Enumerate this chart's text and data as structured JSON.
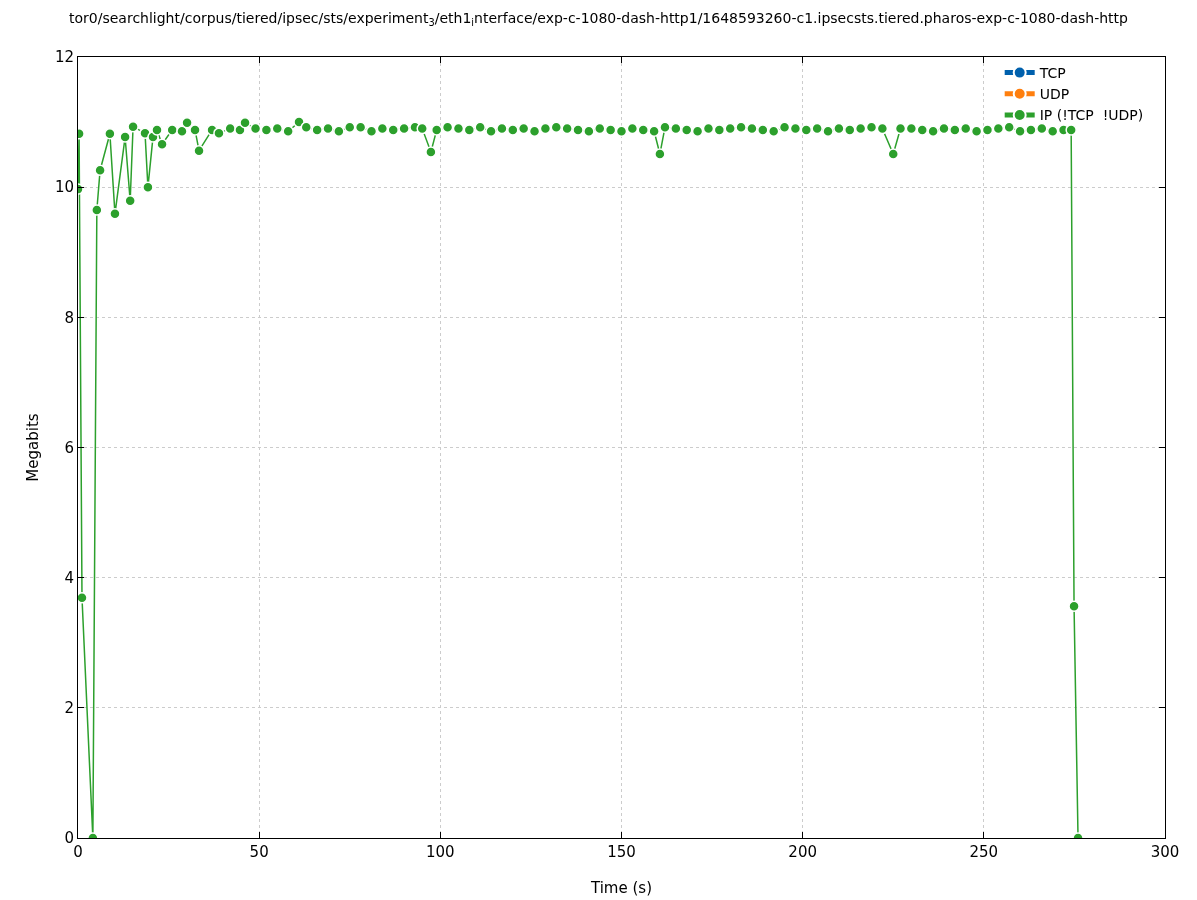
{
  "chart_data": {
    "type": "line",
    "title": "tor0/searchlight/corpus/tiered/ipsec/sts/experiment$_{3}$/eth1$_{i}$nterface/exp-c-1080-dash-http1/1648593260-c1.ipsecsts.tiered.pharos-exp-c-1080-dash-http",
    "xlabel": "Time (s)",
    "ylabel": "Megabits",
    "xlim": [
      0,
      300
    ],
    "xticks": [
      0,
      50,
      100,
      150,
      200,
      250,
      300
    ],
    "ylim": [
      0,
      12
    ],
    "yticks": [
      0,
      2,
      4,
      6,
      8,
      10,
      12
    ],
    "grid": true,
    "legend": "top right",
    "marker": "circle",
    "line_style": "solid",
    "series": [
      {
        "name": "TCP",
        "color": "#0060ad"
      },
      {
        "name": "UDP",
        "color": "#ff7f0e"
      },
      {
        "name": "IP (!TCP  !UDP)",
        "color": "#2ca02c",
        "x": [
          0,
          0.3,
          1.1,
          4.1,
          5.2,
          6.1,
          8.8,
          10.2,
          13,
          14.4,
          15.2,
          18.5,
          19.3,
          20.7,
          21.8,
          23.2,
          26,
          28.7,
          30.1,
          32.3,
          33.4,
          37,
          38.9,
          42,
          44.7,
          46.1,
          49,
          52,
          55,
          58,
          61,
          63,
          66,
          69,
          72,
          75,
          78,
          81,
          84,
          87,
          90,
          93,
          95,
          97.4,
          99,
          102,
          105,
          108,
          111,
          114,
          117,
          120,
          123,
          126,
          129,
          132,
          135,
          138,
          141,
          144,
          147,
          150,
          153,
          156,
          159,
          160.6,
          162,
          165,
          168,
          171,
          174,
          177,
          180,
          183,
          186,
          189,
          192,
          195,
          198,
          201,
          204,
          207,
          210,
          213,
          216,
          219,
          222,
          225,
          227,
          230,
          233,
          236,
          239,
          242,
          245,
          248,
          251,
          254,
          257,
          260,
          263,
          266,
          269,
          272,
          274.1,
          274.9,
          276
        ],
        "values": [
          9.97,
          10.82,
          3.69,
          0,
          9.65,
          10.26,
          10.82,
          9.59,
          10.77,
          9.79,
          10.93,
          10.83,
          10,
          10.77,
          10.88,
          10.66,
          10.88,
          10.86,
          10.99,
          10.88,
          10.56,
          10.88,
          10.83,
          10.9,
          10.88,
          10.99,
          10.9,
          10.88,
          10.9,
          10.86,
          11,
          10.92,
          10.88,
          10.9,
          10.86,
          10.92,
          10.92,
          10.86,
          10.9,
          10.88,
          10.9,
          10.92,
          10.9,
          10.54,
          10.88,
          10.92,
          10.9,
          10.88,
          10.92,
          10.86,
          10.9,
          10.88,
          10.9,
          10.86,
          10.9,
          10.92,
          10.9,
          10.88,
          10.86,
          10.9,
          10.88,
          10.86,
          10.9,
          10.88,
          10.86,
          10.51,
          10.92,
          10.9,
          10.88,
          10.86,
          10.9,
          10.88,
          10.9,
          10.92,
          10.9,
          10.88,
          10.86,
          10.92,
          10.9,
          10.88,
          10.9,
          10.86,
          10.9,
          10.88,
          10.9,
          10.92,
          10.9,
          10.51,
          10.9,
          10.9,
          10.88,
          10.86,
          10.9,
          10.88,
          10.9,
          10.86,
          10.88,
          10.9,
          10.92,
          10.86,
          10.88,
          10.9,
          10.86,
          10.88,
          10.88,
          3.56,
          0
        ]
      }
    ]
  }
}
